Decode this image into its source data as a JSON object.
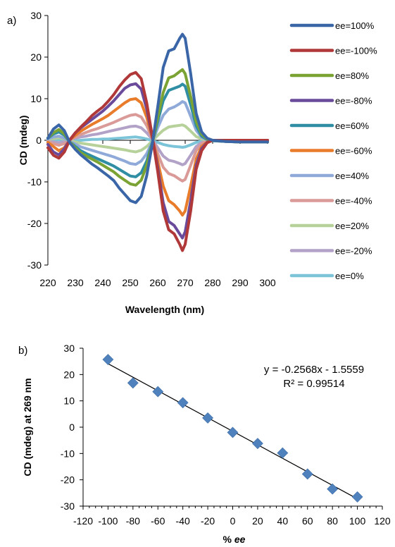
{
  "chart_data": [
    {
      "type": "line",
      "panel_label": "a)",
      "xlabel": "Wavelength (nm)",
      "ylabel": "CD (mdeg)",
      "xlim": [
        220,
        300
      ],
      "ylim": [
        -30,
        30
      ],
      "xticks": [
        220,
        230,
        240,
        250,
        260,
        270,
        280,
        290,
        300
      ],
      "yticks": [
        -30,
        -20,
        -10,
        0,
        10,
        20,
        30
      ],
      "legend_position": "right",
      "grid": false,
      "x": [
        220,
        222,
        224,
        226,
        228,
        230,
        232,
        234,
        236,
        238,
        240,
        242,
        244,
        246,
        248,
        250,
        252,
        254,
        256,
        258,
        260,
        262,
        264,
        266,
        268,
        269,
        270,
        272,
        274,
        276,
        278,
        280,
        285,
        290,
        295,
        300
      ],
      "series": [
        {
          "name": "ee=100%",
          "color": "#3a66a8",
          "values": [
            0.5,
            2.7,
            3.7,
            2.3,
            -0.6,
            -2.2,
            -3.5,
            -4.6,
            -5.7,
            -6.6,
            -7.6,
            -8.6,
            -9.7,
            -11.5,
            -13.0,
            -14.5,
            -15.0,
            -13.5,
            -8.5,
            -1.0,
            8.0,
            17.5,
            21.5,
            22.0,
            24.5,
            25.5,
            24.5,
            16.0,
            6.5,
            2.0,
            0.5,
            0.0,
            -0.3,
            -0.4,
            -0.4,
            -0.4
          ]
        },
        {
          "name": "ee=-100%",
          "color": "#b03838",
          "values": [
            -1.8,
            -3.6,
            -4.3,
            -2.8,
            0.1,
            1.8,
            3.2,
            4.5,
            5.9,
            7.0,
            8.0,
            9.4,
            11.0,
            12.9,
            14.5,
            15.8,
            16.3,
            14.8,
            9.0,
            1.0,
            -7.5,
            -17.0,
            -21.5,
            -22.5,
            -25.0,
            -26.5,
            -25.0,
            -17.0,
            -7.0,
            -2.5,
            -0.6,
            0.0,
            0.0,
            0.0,
            0.0,
            0.0
          ]
        },
        {
          "name": "ee=80%",
          "color": "#7aa334",
          "values": [
            0.6,
            1.8,
            2.6,
            1.5,
            -0.4,
            -1.8,
            -3.0,
            -3.8,
            -4.5,
            -5.2,
            -6.0,
            -6.8,
            -7.6,
            -8.7,
            -9.6,
            -10.5,
            -10.8,
            -9.6,
            -6.0,
            -0.8,
            5.5,
            11.5,
            15.0,
            15.5,
            16.5,
            17.0,
            16.0,
            10.5,
            4.5,
            1.5,
            0.3,
            0.0,
            -0.3,
            -0.4,
            -0.4,
            -0.4
          ]
        },
        {
          "name": "ee=-80%",
          "color": "#6a4a9a",
          "values": [
            -1.0,
            -2.8,
            -3.5,
            -2.0,
            0.1,
            1.8,
            3.0,
            4.0,
            5.0,
            6.0,
            7.0,
            8.2,
            9.5,
            11.0,
            12.5,
            13.3,
            13.6,
            12.3,
            7.5,
            0.8,
            -6.5,
            -15.0,
            -19.5,
            -20.5,
            -22.5,
            -23.5,
            -22.0,
            -14.5,
            -6.0,
            -2.0,
            -0.5,
            0.0,
            0.0,
            0.0,
            0.0,
            0.0
          ]
        },
        {
          "name": "ee=60%",
          "color": "#2f8ea3",
          "values": [
            0.5,
            1.5,
            2.0,
            1.2,
            -0.4,
            -1.5,
            -2.5,
            -3.2,
            -3.8,
            -4.4,
            -5.0,
            -5.6,
            -6.2,
            -7.0,
            -7.8,
            -8.6,
            -8.8,
            -7.8,
            -5.0,
            -0.6,
            4.5,
            9.5,
            12.0,
            12.5,
            13.0,
            13.5,
            13.0,
            8.5,
            3.5,
            1.0,
            0.2,
            -0.1,
            -0.3,
            -0.4,
            -0.4,
            -0.4
          ]
        },
        {
          "name": "ee=-60%",
          "color": "#e87c2a",
          "values": [
            -0.5,
            -1.5,
            -2.5,
            -1.8,
            0.1,
            1.2,
            2.2,
            3.0,
            3.8,
            4.5,
            5.2,
            6.0,
            7.0,
            8.0,
            9.0,
            9.8,
            10.0,
            9.0,
            5.5,
            0.6,
            -5.0,
            -11.0,
            -14.5,
            -15.5,
            -17.0,
            -18.0,
            -17.0,
            -11.0,
            -4.5,
            -1.5,
            -0.4,
            0.0,
            0.0,
            0.0,
            0.0,
            0.0
          ]
        },
        {
          "name": "ee=40%",
          "color": "#8fa9d8",
          "values": [
            0.3,
            0.8,
            1.0,
            0.5,
            -0.3,
            -0.9,
            -1.6,
            -2.0,
            -2.4,
            -2.8,
            -3.2,
            -3.6,
            -4.0,
            -4.5,
            -5.0,
            -5.6,
            -5.8,
            -5.0,
            -3.2,
            -0.4,
            3.0,
            6.0,
            7.5,
            8.0,
            8.8,
            9.3,
            9.0,
            5.8,
            2.4,
            0.7,
            0.1,
            -0.1,
            -0.3,
            -0.4,
            -0.4,
            -0.4
          ]
        },
        {
          "name": "ee=-40%",
          "color": "#d99a98",
          "values": [
            -0.3,
            -0.8,
            -1.2,
            -0.8,
            0.1,
            0.8,
            1.4,
            1.9,
            2.4,
            2.8,
            3.3,
            3.8,
            4.3,
            4.9,
            5.5,
            6.0,
            6.2,
            5.6,
            3.5,
            0.4,
            -3.2,
            -6.5,
            -8.0,
            -8.5,
            -9.4,
            -9.8,
            -9.4,
            -6.0,
            -2.5,
            -0.8,
            -0.2,
            0.0,
            0.0,
            0.0,
            0.0,
            0.0
          ]
        },
        {
          "name": "ee=20%",
          "color": "#b6d19a",
          "values": [
            0.2,
            0.4,
            0.6,
            0.3,
            -0.2,
            -0.4,
            -0.7,
            -0.9,
            -1.1,
            -1.3,
            -1.5,
            -1.7,
            -1.9,
            -2.1,
            -2.3,
            -2.6,
            -2.8,
            -2.4,
            -1.5,
            -0.2,
            1.2,
            2.4,
            3.2,
            3.4,
            3.6,
            3.7,
            3.4,
            2.2,
            0.9,
            0.3,
            0.0,
            -0.1,
            -0.3,
            -0.4,
            -0.4,
            -0.4
          ]
        },
        {
          "name": "ee=-20%",
          "color": "#b3a2c7",
          "values": [
            -0.2,
            -0.4,
            -0.6,
            -0.3,
            0.1,
            0.5,
            0.8,
            1.0,
            1.3,
            1.5,
            1.8,
            2.1,
            2.4,
            2.7,
            3.0,
            3.3,
            3.4,
            3.0,
            1.8,
            0.2,
            -1.8,
            -3.8,
            -4.8,
            -5.1,
            -5.6,
            -5.9,
            -5.6,
            -3.6,
            -1.5,
            -0.5,
            -0.1,
            0.0,
            0.0,
            0.0,
            0.0,
            0.0
          ]
        },
        {
          "name": "ee=0%",
          "color": "#7cc4d8",
          "values": [
            0.0,
            0.1,
            0.1,
            0.0,
            -0.1,
            -0.1,
            0.0,
            0.1,
            0.2,
            0.2,
            0.3,
            0.3,
            0.4,
            0.5,
            0.6,
            0.7,
            0.8,
            0.6,
            0.3,
            -0.1,
            -0.5,
            -1.0,
            -1.3,
            -1.5,
            -1.6,
            -1.7,
            -1.6,
            -1.1,
            -0.5,
            -0.2,
            -0.1,
            -0.1,
            -0.2,
            -0.3,
            -0.3,
            -0.3
          ]
        }
      ]
    },
    {
      "type": "scatter",
      "panel_label": "b)",
      "xlabel": "% ee",
      "ylabel": "CD (mdeg) at 269 nm",
      "xlim": [
        -120,
        120
      ],
      "ylim": [
        -30,
        30
      ],
      "xticks": [
        -120,
        -100,
        -80,
        -60,
        -40,
        -20,
        0,
        20,
        40,
        60,
        80,
        100,
        120
      ],
      "yticks": [
        -30,
        -20,
        -10,
        0,
        10,
        20,
        30
      ],
      "grid": false,
      "marker_color": "#4f81bd",
      "x": [
        -100,
        -80,
        -60,
        -40,
        -20,
        0,
        20,
        40,
        60,
        80,
        100
      ],
      "y": [
        25.7,
        16.8,
        13.5,
        9.3,
        3.5,
        -2.0,
        -6.2,
        -9.8,
        -17.8,
        -23.5,
        -26.5
      ],
      "trendline": {
        "slope": -0.2568,
        "intercept": -1.5559,
        "x_range": [
          -100,
          100
        ]
      },
      "equation": "y = -0.2568x - 1.5559",
      "r_squared": "R² = 0.99514"
    }
  ]
}
